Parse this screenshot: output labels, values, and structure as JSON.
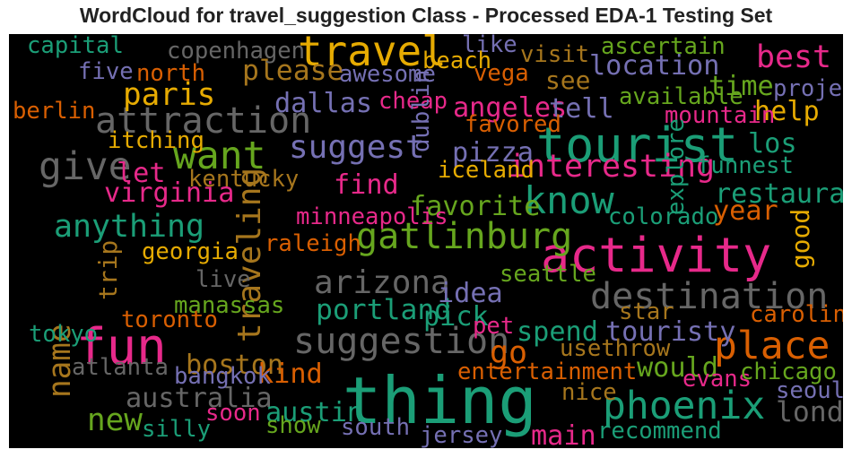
{
  "chart_data": {
    "type": "wordcloud",
    "title": "WordCloud for travel_suggestion Class - Processed EDA-1 Testing Set",
    "background": "#000000",
    "palette": {
      "g": "#1b9e77",
      "o": "#d95f02",
      "p": "#7570b3",
      "m": "#e7298a",
      "l": "#66a61e",
      "y": "#e6ab02",
      "b": "#a6761d",
      "k": "#666666"
    },
    "words": [
      {
        "text": "thing",
        "rank": 1.0,
        "color": "g"
      },
      {
        "text": "tourist",
        "rank": 0.68,
        "color": "g"
      },
      {
        "text": "fun",
        "rank": 0.72,
        "color": "m"
      },
      {
        "text": "activity",
        "rank": 0.68,
        "color": "m"
      },
      {
        "text": "travel",
        "rank": 0.55,
        "color": "y"
      },
      {
        "text": "want",
        "rank": 0.5,
        "color": "l"
      },
      {
        "text": "give",
        "rank": 0.5,
        "color": "k"
      },
      {
        "text": "place",
        "rank": 0.5,
        "color": "o"
      },
      {
        "text": "phoenix",
        "rank": 0.5,
        "color": "g"
      },
      {
        "text": "destination",
        "rank": 0.45,
        "color": "k"
      },
      {
        "text": "attraction",
        "rank": 0.45,
        "color": "k"
      },
      {
        "text": "know",
        "rank": 0.48,
        "color": "g"
      },
      {
        "text": "gatlinburg",
        "rank": 0.45,
        "color": "l"
      },
      {
        "text": "suggestion",
        "rank": 0.45,
        "color": "k"
      },
      {
        "text": "arizona",
        "rank": 0.38,
        "color": "k"
      },
      {
        "text": "traveling",
        "rank": 0.38,
        "color": "b"
      },
      {
        "text": "suggest",
        "rank": 0.38,
        "color": "p"
      },
      {
        "text": "interesting",
        "rank": 0.36,
        "color": "m"
      },
      {
        "text": "anything",
        "rank": 0.36,
        "color": "g"
      },
      {
        "text": "best",
        "rank": 0.36,
        "color": "m"
      },
      {
        "text": "paris",
        "rank": 0.35,
        "color": "y"
      },
      {
        "text": "go",
        "rank": 0.36,
        "color": "o"
      },
      {
        "text": "name",
        "rank": 0.35,
        "color": "b"
      },
      {
        "text": "new",
        "rank": 0.35,
        "color": "l"
      },
      {
        "text": "london",
        "rank": 0.3,
        "color": "k"
      },
      {
        "text": "portland",
        "rank": 0.3,
        "color": "g"
      },
      {
        "text": "please",
        "rank": 0.3,
        "color": "b"
      },
      {
        "text": "location",
        "rank": 0.28,
        "color": "p"
      },
      {
        "text": "angeles",
        "rank": 0.28,
        "color": "m"
      },
      {
        "text": "pizza",
        "rank": 0.28,
        "color": "p"
      },
      {
        "text": "tell",
        "rank": 0.28,
        "color": "p"
      },
      {
        "text": "dallas",
        "rank": 0.28,
        "color": "p"
      },
      {
        "text": "spend",
        "rank": 0.28,
        "color": "g"
      },
      {
        "text": "touristy",
        "rank": 0.28,
        "color": "p"
      },
      {
        "text": "pick",
        "rank": 0.28,
        "color": "g"
      },
      {
        "text": "idea",
        "rank": 0.28,
        "color": "p"
      },
      {
        "text": "australia",
        "rank": 0.28,
        "color": "k"
      },
      {
        "text": "austin",
        "rank": 0.28,
        "color": "g"
      },
      {
        "text": "boston",
        "rank": 0.28,
        "color": "b"
      },
      {
        "text": "kind",
        "rank": 0.28,
        "color": "o"
      },
      {
        "text": "would",
        "rank": 0.28,
        "color": "l"
      },
      {
        "text": "main",
        "rank": 0.28,
        "color": "m"
      },
      {
        "text": "restaurant",
        "rank": 0.28,
        "color": "g"
      },
      {
        "text": "virginia",
        "rank": 0.28,
        "color": "m"
      },
      {
        "text": "favorite",
        "rank": 0.28,
        "color": "l"
      },
      {
        "text": "find",
        "rank": 0.28,
        "color": "m"
      },
      {
        "text": "let",
        "rank": 0.28,
        "color": "m"
      },
      {
        "text": "time",
        "rank": 0.28,
        "color": "l"
      },
      {
        "text": "help",
        "rank": 0.28,
        "color": "y"
      },
      {
        "text": "los",
        "rank": 0.28,
        "color": "g"
      },
      {
        "text": "year",
        "rank": 0.28,
        "color": "o"
      },
      {
        "text": "see",
        "rank": 0.24,
        "color": "b"
      },
      {
        "text": "trip",
        "rank": 0.24,
        "color": "b"
      },
      {
        "text": "good",
        "rank": 0.24,
        "color": "y"
      },
      {
        "text": "capital",
        "rank": 0.2,
        "color": "g"
      },
      {
        "text": "copenhagen",
        "rank": 0.2,
        "color": "k"
      },
      {
        "text": "like",
        "rank": 0.2,
        "color": "p"
      },
      {
        "text": "ascertain",
        "rank": 0.2,
        "color": "l"
      },
      {
        "text": "five",
        "rank": 0.2,
        "color": "p"
      },
      {
        "text": "north",
        "rank": 0.2,
        "color": "o"
      },
      {
        "text": "awesome",
        "rank": 0.2,
        "color": "p"
      },
      {
        "text": "beach",
        "rank": 0.2,
        "color": "y"
      },
      {
        "text": "vega",
        "rank": 0.2,
        "color": "o"
      },
      {
        "text": "visit",
        "rank": 0.2,
        "color": "b"
      },
      {
        "text": "berlin",
        "rank": 0.2,
        "color": "o"
      },
      {
        "text": "cheap",
        "rank": 0.2,
        "color": "m"
      },
      {
        "text": "available",
        "rank": 0.2,
        "color": "l"
      },
      {
        "text": "project",
        "rank": 0.2,
        "color": "p"
      },
      {
        "text": "favored",
        "rank": 0.2,
        "color": "o"
      },
      {
        "text": "mountain",
        "rank": 0.2,
        "color": "m"
      },
      {
        "text": "itching",
        "rank": 0.2,
        "color": "y"
      },
      {
        "text": "dublin",
        "rank": 0.2,
        "color": "p"
      },
      {
        "text": "iceland",
        "rank": 0.2,
        "color": "y"
      },
      {
        "text": "kentucky",
        "rank": 0.2,
        "color": "b"
      },
      {
        "text": "explore",
        "rank": 0.2,
        "color": "g"
      },
      {
        "text": "funnest",
        "rank": 0.2,
        "color": "g"
      },
      {
        "text": "colorado",
        "rank": 0.2,
        "color": "g"
      },
      {
        "text": "minneapolis",
        "rank": 0.2,
        "color": "m"
      },
      {
        "text": "raleigh",
        "rank": 0.2,
        "color": "o"
      },
      {
        "text": "georgia",
        "rank": 0.2,
        "color": "y"
      },
      {
        "text": "live",
        "rank": 0.2,
        "color": "k"
      },
      {
        "text": "seattle",
        "rank": 0.2,
        "color": "l"
      },
      {
        "text": "manassas",
        "rank": 0.2,
        "color": "l"
      },
      {
        "text": "toronto",
        "rank": 0.2,
        "color": "o"
      },
      {
        "text": "star",
        "rank": 0.2,
        "color": "b"
      },
      {
        "text": "carolina",
        "rank": 0.2,
        "color": "o"
      },
      {
        "text": "tokyo",
        "rank": 0.2,
        "color": "g"
      },
      {
        "text": "pet",
        "rank": 0.2,
        "color": "m"
      },
      {
        "text": "usethrow",
        "rank": 0.2,
        "color": "b"
      },
      {
        "text": "atlanta",
        "rank": 0.2,
        "color": "k"
      },
      {
        "text": "bangkok",
        "rank": 0.2,
        "color": "p"
      },
      {
        "text": "entertainment",
        "rank": 0.2,
        "color": "o"
      },
      {
        "text": "evans",
        "rank": 0.2,
        "color": "m"
      },
      {
        "text": "chicago",
        "rank": 0.2,
        "color": "l"
      },
      {
        "text": "nice",
        "rank": 0.2,
        "color": "b"
      },
      {
        "text": "seoul",
        "rank": 0.2,
        "color": "p"
      },
      {
        "text": "soon",
        "rank": 0.2,
        "color": "m"
      },
      {
        "text": "silly",
        "rank": 0.2,
        "color": "g"
      },
      {
        "text": "show",
        "rank": 0.2,
        "color": "l"
      },
      {
        "text": "south",
        "rank": 0.2,
        "color": "p"
      },
      {
        "text": "jersey",
        "rank": 0.2,
        "color": "p"
      },
      {
        "text": "recommend",
        "rank": 0.2,
        "color": "g"
      }
    ]
  }
}
